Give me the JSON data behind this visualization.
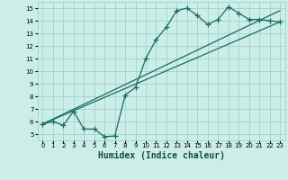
{
  "title": "",
  "xlabel": "Humidex (Indice chaleur)",
  "bg_color": "#cceee8",
  "grid_color": "#99cccc",
  "line_color": "#1a6b5e",
  "xlim": [
    -0.5,
    23.5
  ],
  "ylim": [
    4.5,
    15.5
  ],
  "xticks": [
    0,
    1,
    2,
    3,
    4,
    5,
    6,
    7,
    8,
    9,
    10,
    11,
    12,
    13,
    14,
    15,
    16,
    17,
    18,
    19,
    20,
    21,
    22,
    23
  ],
  "yticks": [
    5,
    6,
    7,
    8,
    9,
    10,
    11,
    12,
    13,
    14,
    15
  ],
  "line1_x": [
    0,
    1,
    2,
    3,
    4,
    5,
    6,
    7,
    8,
    9,
    10,
    11,
    12,
    13,
    14,
    15,
    16,
    17,
    18,
    19,
    20,
    21,
    22,
    23
  ],
  "line1_y": [
    5.8,
    6.0,
    5.7,
    6.8,
    5.4,
    5.4,
    4.8,
    4.85,
    8.1,
    8.7,
    11.0,
    12.5,
    13.5,
    14.8,
    15.0,
    14.4,
    13.7,
    14.1,
    15.1,
    14.6,
    14.1,
    14.1,
    14.0,
    13.9
  ],
  "line2_x": [
    0,
    23
  ],
  "line2_y": [
    5.8,
    13.9
  ],
  "line3_x": [
    0,
    23
  ],
  "line3_y": [
    5.8,
    14.8
  ],
  "marker": "+",
  "marker_size": 4,
  "linewidth": 0.9,
  "xlabel_fontsize": 7,
  "tick_fontsize": 5
}
